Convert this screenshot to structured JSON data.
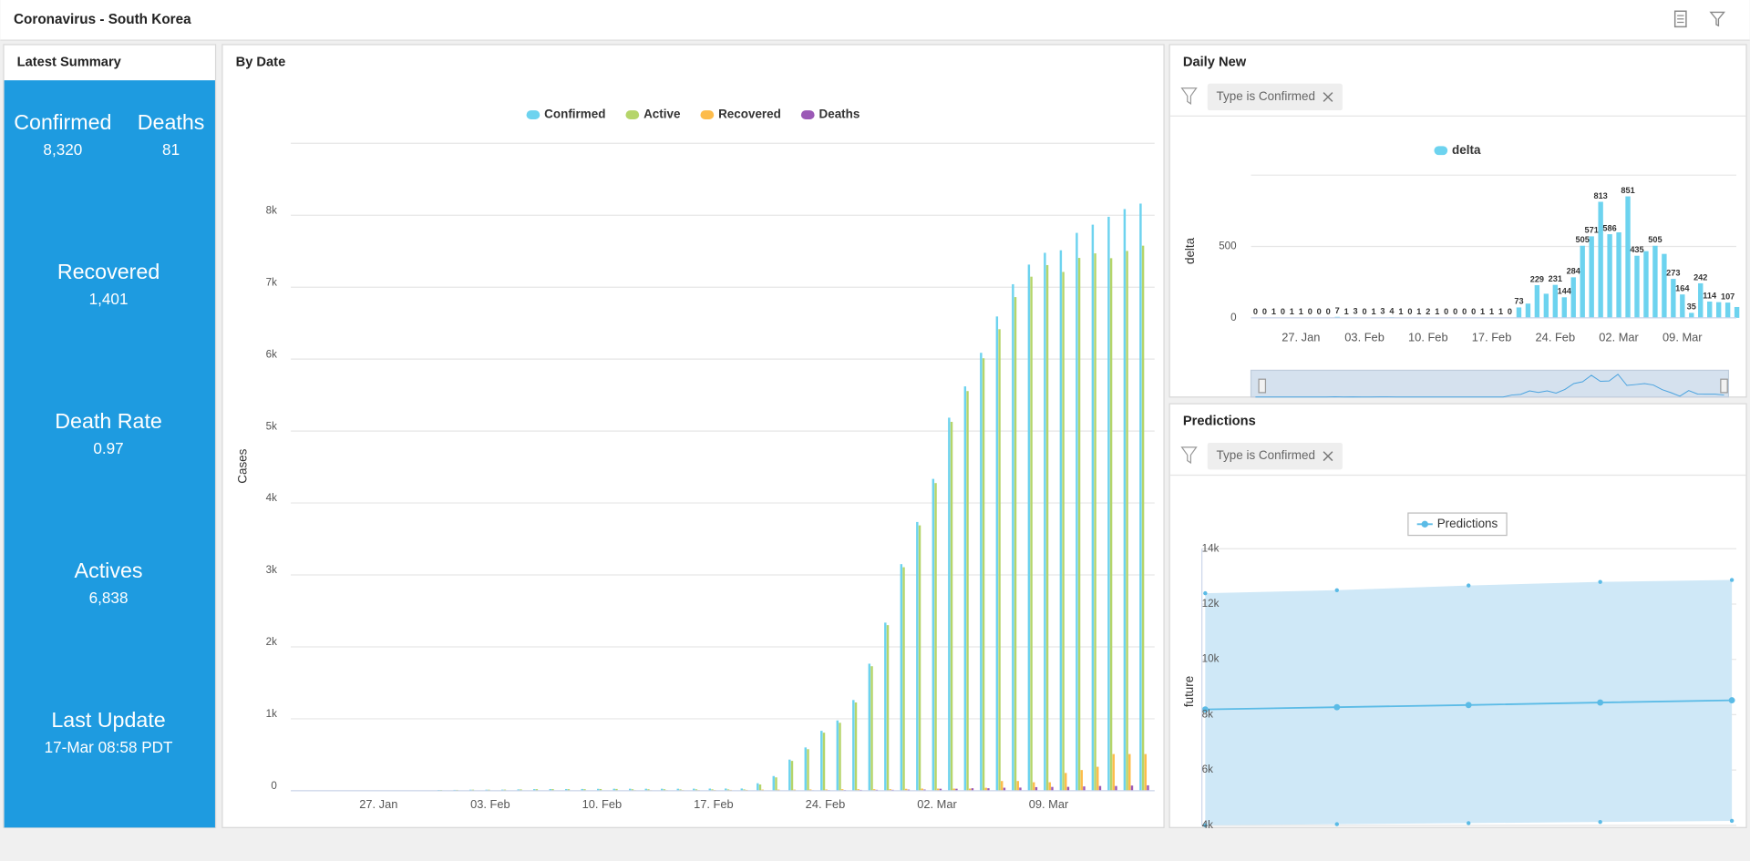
{
  "header": {
    "title": "Coronavirus - South Korea"
  },
  "summary": {
    "title": "Latest Summary",
    "items": [
      {
        "label": "Confirmed",
        "value": "8,320"
      },
      {
        "label": "Deaths",
        "value": "81"
      },
      {
        "label": "Recovered",
        "value": "1,401"
      },
      {
        "label": "Death Rate",
        "value": "0.97"
      },
      {
        "label": "Actives",
        "value": "6,838"
      },
      {
        "label": "Last Update",
        "value": "17-Mar 08:58 PDT"
      }
    ]
  },
  "chart_data": [
    {
      "type": "bar",
      "title": "By Date",
      "y_label": "Cases",
      "categories": [
        null,
        null,
        null,
        null,
        null,
        "27. Jan",
        null,
        null,
        null,
        null,
        null,
        null,
        "03. Feb",
        null,
        null,
        null,
        null,
        null,
        null,
        "10. Feb",
        null,
        null,
        null,
        null,
        null,
        null,
        "17. Feb",
        null,
        null,
        null,
        null,
        null,
        null,
        "24. Feb",
        null,
        null,
        null,
        null,
        null,
        null,
        "02. Mar",
        null,
        null,
        null,
        null,
        null,
        null,
        "09. Mar",
        null,
        null,
        null,
        null,
        null,
        null
      ],
      "series": [
        {
          "name": "Confirmed",
          "color": "#6dd3ef",
          "values": [
            1,
            1,
            2,
            2,
            3,
            4,
            4,
            4,
            4,
            11,
            12,
            15,
            15,
            16,
            19,
            23,
            24,
            24,
            25,
            27,
            28,
            28,
            28,
            28,
            28,
            29,
            30,
            31,
            31,
            104,
            204,
            433,
            602,
            833,
            977,
            1261,
            1766,
            2337,
            3150,
            3736,
            4335,
            5186,
            5621,
            6088,
            6593,
            7041,
            7314,
            7478,
            7513,
            7755,
            7869,
            7979,
            8086,
            8162
          ]
        },
        {
          "name": "Active",
          "color": "#b5d56a",
          "values": [
            1,
            1,
            2,
            2,
            3,
            4,
            4,
            4,
            4,
            11,
            12,
            15,
            15,
            16,
            19,
            22,
            23,
            22,
            22,
            24,
            25,
            21,
            21,
            21,
            19,
            20,
            20,
            19,
            19,
            87,
            186,
            415,
            578,
            807,
            945,
            1227,
            1731,
            2302,
            3107,
            3689,
            4277,
            5128,
            5556,
            6012,
            6416,
            6862,
            7146,
            7307,
            7212,
            7407,
            7470,
            7403,
            7504,
            7577
          ]
        },
        {
          "name": "Recovered",
          "color": "#fdbc4b",
          "values": [
            0,
            0,
            0,
            0,
            0,
            0,
            0,
            0,
            0,
            0,
            0,
            0,
            0,
            0,
            0,
            1,
            1,
            2,
            3,
            3,
            3,
            7,
            7,
            7,
            9,
            9,
            10,
            12,
            12,
            16,
            16,
            16,
            18,
            18,
            22,
            22,
            22,
            22,
            27,
            30,
            30,
            30,
            30,
            41,
            135,
            135,
            118,
            118,
            247,
            288,
            333,
            510,
            510,
            510
          ]
        },
        {
          "name": "Deaths",
          "color": "#9b59b6",
          "values": [
            0,
            0,
            0,
            0,
            0,
            0,
            0,
            0,
            0,
            0,
            0,
            0,
            0,
            0,
            0,
            0,
            0,
            0,
            0,
            0,
            0,
            0,
            0,
            0,
            0,
            0,
            0,
            0,
            0,
            1,
            2,
            2,
            6,
            8,
            10,
            12,
            13,
            13,
            16,
            17,
            28,
            28,
            35,
            35,
            42,
            44,
            50,
            53,
            54,
            60,
            66,
            66,
            72,
            75
          ]
        }
      ],
      "ylim": [
        0,
        9000
      ],
      "yticks": [
        0,
        {
          "value": 1000,
          "label": "1k"
        },
        {
          "value": 2000,
          "label": "2k"
        },
        {
          "value": 3000,
          "label": "3k"
        },
        {
          "value": 4000,
          "label": "4k"
        },
        {
          "value": 5000,
          "label": "5k"
        },
        {
          "value": 6000,
          "label": "6k"
        },
        {
          "value": 7000,
          "label": "7k"
        },
        {
          "value": 8000,
          "label": "8k"
        }
      ],
      "grid": true,
      "legend": "top"
    },
    {
      "type": "bar",
      "title": "Daily New",
      "filter": "Type is Confirmed",
      "y_label": "delta",
      "categories": [
        null,
        null,
        null,
        null,
        null,
        "27. Jan",
        null,
        null,
        null,
        null,
        null,
        null,
        "03. Feb",
        null,
        null,
        null,
        null,
        null,
        null,
        "10. Feb",
        null,
        null,
        null,
        null,
        null,
        null,
        "17. Feb",
        null,
        null,
        null,
        null,
        null,
        null,
        "24. Feb",
        null,
        null,
        null,
        null,
        null,
        null,
        "02. Mar",
        null,
        null,
        null,
        null,
        null,
        null,
        "09. Mar",
        null,
        null,
        null,
        null,
        null,
        null
      ],
      "series": [
        {
          "name": "delta",
          "color": "#6dd3ef",
          "values": [
            0,
            0,
            1,
            0,
            1,
            1,
            0,
            0,
            0,
            7,
            1,
            3,
            0,
            1,
            3,
            4,
            1,
            0,
            1,
            2,
            1,
            0,
            0,
            0,
            0,
            1,
            1,
            1,
            0,
            73,
            100,
            229,
            169,
            231,
            144,
            284,
            505,
            571,
            813,
            586,
            599,
            851,
            435,
            467,
            505,
            448,
            273,
            164,
            35,
            242,
            114,
            110,
            107,
            76
          ]
        }
      ],
      "ylim": [
        0,
        1000
      ],
      "yticks": [
        0,
        500
      ],
      "grid": true,
      "legend": "top",
      "data_labels": true
    },
    {
      "type": "line",
      "title": "Predictions",
      "filter": "Type is Confirmed",
      "y_label": "future",
      "categories": [
        null,
        null,
        null,
        null,
        null
      ],
      "series": [
        {
          "name": "Predictions",
          "color": "#5bbbe6",
          "values": [
            8190,
            8270,
            8350,
            8440,
            8520
          ],
          "lower": [
            4000,
            4040,
            4080,
            4120,
            4160
          ],
          "upper": [
            12390,
            12500,
            12670,
            12800,
            12870
          ]
        }
      ],
      "ylim": [
        4000,
        14000
      ],
      "yticks": [
        {
          "value": 4000,
          "label": "4k"
        },
        {
          "value": 6000,
          "label": "6k"
        },
        {
          "value": 8000,
          "label": "8k"
        },
        {
          "value": 10000,
          "label": "10k"
        },
        {
          "value": 12000,
          "label": "12k"
        },
        {
          "value": 14000,
          "label": "14k"
        }
      ],
      "grid": true,
      "legend": "top"
    }
  ]
}
